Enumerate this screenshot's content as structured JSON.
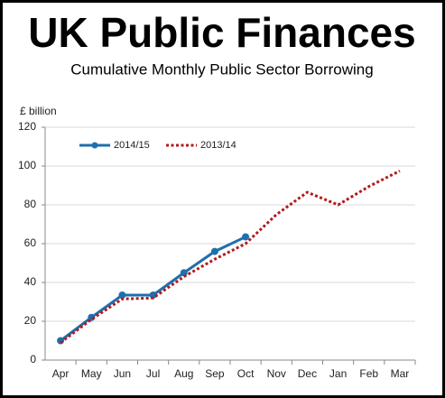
{
  "chart_data": {
    "type": "line",
    "title": "UK Public Finances",
    "subtitle": "Cumulative Monthly Public Sector Borrowing",
    "y_label": "£ billion",
    "categories": [
      "Apr",
      "May",
      "Jun",
      "Jul",
      "Aug",
      "Sep",
      "Oct",
      "Nov",
      "Dec",
      "Jan",
      "Feb",
      "Mar"
    ],
    "series": [
      {
        "name": "2014/15",
        "color": "#1f6fad",
        "style": "solid",
        "markers": true,
        "values": [
          10,
          22,
          33.5,
          33.5,
          45,
          56,
          63.5,
          null,
          null,
          null,
          null,
          null
        ]
      },
      {
        "name": "2013/14",
        "color": "#b01c1c",
        "style": "dotted",
        "markers": false,
        "values": [
          9,
          21,
          31.5,
          32,
          43,
          52,
          60,
          75,
          86.5,
          80,
          89.5,
          97.5
        ]
      }
    ],
    "ylim": [
      0,
      120
    ],
    "yticks": [
      0,
      20,
      40,
      60,
      80,
      100,
      120
    ],
    "grid": true,
    "legend": "upper left"
  }
}
